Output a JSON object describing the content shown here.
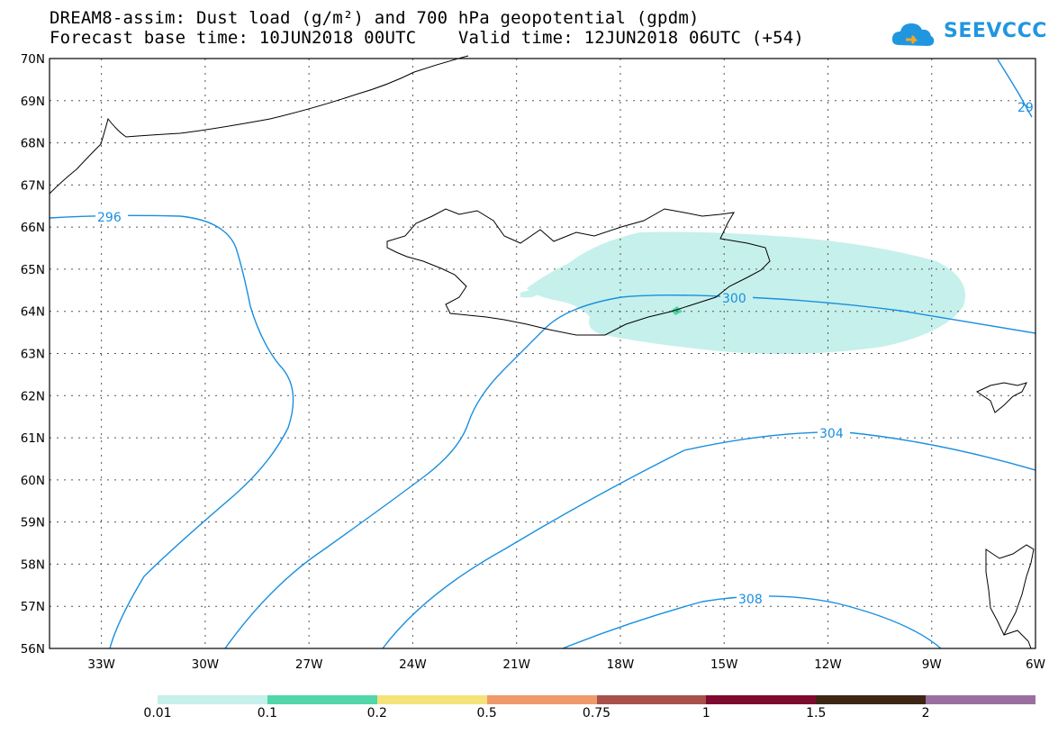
{
  "header": {
    "title_line1": "DREAM8-assim: Dust load (g/m²) and 700 hPa geopotential (gpdm)",
    "title_line2": "Forecast base time: 10JUN2018 00UTC    Valid time: 12JUN2018 06UTC (+54)",
    "logo_text": "SEEVCCC"
  },
  "map": {
    "lat_labels": [
      "70N",
      "69N",
      "68N",
      "67N",
      "66N",
      "65N",
      "64N",
      "63N",
      "62N",
      "61N",
      "60N",
      "59N",
      "58N",
      "57N",
      "56N"
    ],
    "lon_labels": [
      "33W",
      "30W",
      "27W",
      "24W",
      "21W",
      "18W",
      "15W",
      "12W",
      "9W",
      "6W"
    ],
    "lat_range": [
      56,
      70
    ],
    "lon_range": [
      -34.5,
      -6
    ],
    "contour_labels": [
      "296",
      "300",
      "304",
      "308",
      "29"
    ],
    "contour_color": "#1a8fe0",
    "dust_color": "#c6f0eb"
  },
  "colorbar": {
    "labels": [
      "0.01",
      "0.1",
      "0.2",
      "0.5",
      "0.75",
      "1",
      "1.5",
      "2"
    ],
    "colors": [
      "#c6f0eb",
      "#50d6a8",
      "#f4e37a",
      "#ef9a6a",
      "#a8504a",
      "#7e0a30",
      "#3d2614",
      "#9a6fa0"
    ]
  }
}
